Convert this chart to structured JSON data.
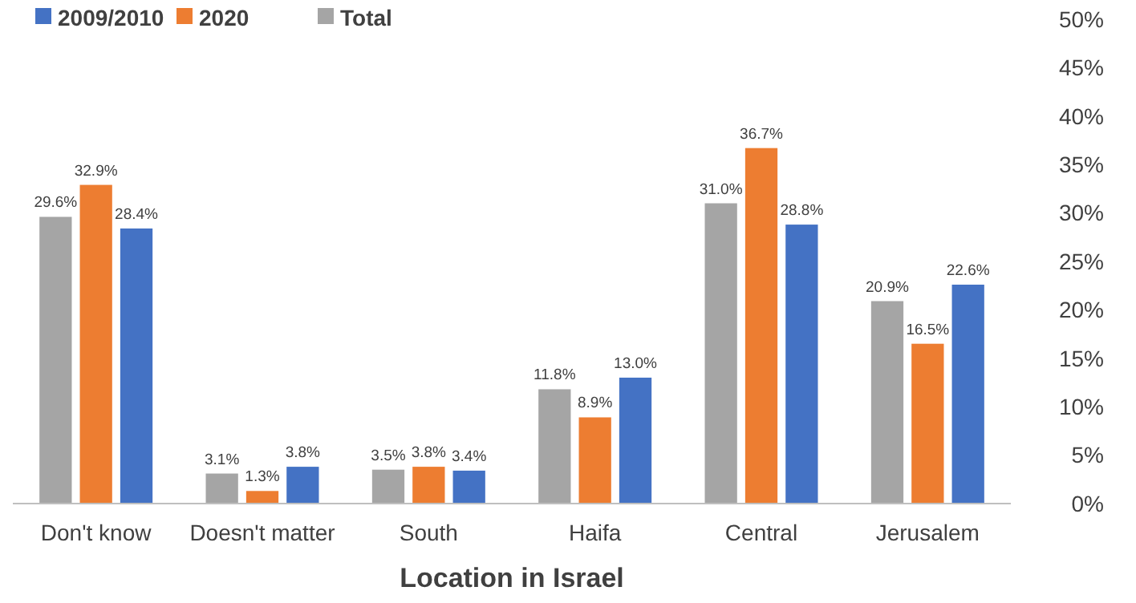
{
  "chart_data": {
    "type": "bar",
    "xlabel": "Location in Israel",
    "categories": [
      "Don't know",
      "Doesn't matter",
      "South",
      "Haifa",
      "Central",
      "Jerusalem"
    ],
    "series": [
      {
        "name": "Total",
        "color": "#a5a5a5",
        "values": [
          29.6,
          3.1,
          3.5,
          11.8,
          31.0,
          20.9
        ],
        "value_labels": [
          "29.6%",
          "3.1%",
          "3.5%",
          "11.8%",
          "31.0%",
          "20.9%"
        ]
      },
      {
        "name": "2020",
        "color": "#ed7d31",
        "values": [
          32.9,
          1.3,
          3.8,
          8.9,
          36.7,
          16.5
        ],
        "value_labels": [
          "32.9%",
          "1.3%",
          "3.8%",
          "8.9%",
          "36.7%",
          "16.5%"
        ]
      },
      {
        "name": "2009/2010",
        "color": "#4472c4",
        "values": [
          28.4,
          3.8,
          3.4,
          13.0,
          28.8,
          22.6
        ],
        "value_labels": [
          "28.4%",
          "3.8%",
          "3.4%",
          "13.0%",
          "28.8%",
          "22.6%"
        ]
      }
    ],
    "ylim": [
      0,
      50
    ],
    "yticks": [
      {
        "value": 0,
        "label": "0%"
      },
      {
        "value": 5,
        "label": "5%"
      },
      {
        "value": 10,
        "label": "10%"
      },
      {
        "value": 15,
        "label": "15%"
      },
      {
        "value": 20,
        "label": "20%"
      },
      {
        "value": 25,
        "label": "25%"
      },
      {
        "value": 30,
        "label": "30%"
      },
      {
        "value": 35,
        "label": "35%"
      },
      {
        "value": 40,
        "label": "40%"
      },
      {
        "value": 45,
        "label": "45%"
      },
      {
        "value": 50,
        "label": "50%"
      }
    ],
    "legend": "top left",
    "grid": false
  }
}
